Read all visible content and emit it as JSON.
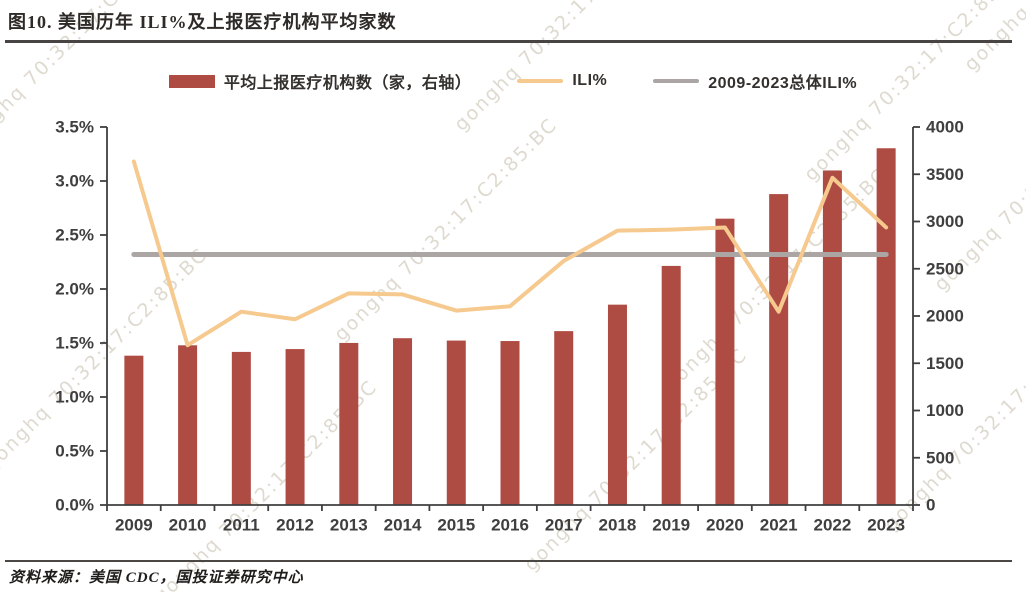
{
  "page": {
    "title": "图10. 美国历年 ILI%及上报医疗机构平均家数",
    "source": "资料来源：美国 CDC，国投证券研究中心",
    "watermark": "gonghq 70:32:17:C2:85:BC"
  },
  "legend": {
    "items": [
      {
        "label": "平均上报医疗机构数（家，右轴）",
        "swatch": "bar",
        "color": "#AE4B43"
      },
      {
        "label": "ILI%",
        "swatch": "line",
        "color": "#F6C98E"
      },
      {
        "label": "2009-2023总体ILI%",
        "swatch": "line",
        "color": "#ABA5A4"
      }
    ]
  },
  "chart_data": {
    "type": "combo-bar-line",
    "title": "图10. 美国历年 ILI%及上报医疗机构平均家数",
    "categories": [
      "2009",
      "2010",
      "2011",
      "2012",
      "2013",
      "2014",
      "2015",
      "2016",
      "2017",
      "2018",
      "2019",
      "2020",
      "2021",
      "2022",
      "2023"
    ],
    "series": [
      {
        "name": "平均上报医疗机构数（家，右轴）",
        "type": "bar",
        "axis": "right",
        "color": "#AE4B43",
        "values": [
          1580,
          1690,
          1620,
          1650,
          1715,
          1765,
          1740,
          1735,
          1840,
          2120,
          2530,
          3030,
          3290,
          3540,
          3775
        ]
      },
      {
        "name": "ILI%",
        "type": "line",
        "axis": "left",
        "color": "#F6C98E",
        "values": [
          3.18,
          1.48,
          1.79,
          1.72,
          1.96,
          1.95,
          1.8,
          1.84,
          2.26,
          2.54,
          2.55,
          2.57,
          1.79,
          3.03,
          2.57
        ]
      },
      {
        "name": "2009-2023总体ILI%",
        "type": "constant-line",
        "axis": "left",
        "color": "#ABA5A4",
        "value": 2.32
      }
    ],
    "left_axis": {
      "min": 0,
      "max": 3.5,
      "step": 0.5,
      "tick_labels": [
        "0.0%",
        "0.5%",
        "1.0%",
        "1.5%",
        "2.0%",
        "2.5%",
        "3.0%",
        "3.5%"
      ]
    },
    "right_axis": {
      "min": 0,
      "max": 4000,
      "step": 500,
      "tick_labels": [
        "0",
        "500",
        "1000",
        "1500",
        "2000",
        "2500",
        "3000",
        "3500",
        "4000"
      ]
    },
    "grid": false,
    "legend_position": "top",
    "colors": {
      "axis": "#3F3F3F",
      "tick_text": "#3F3F3F"
    }
  }
}
